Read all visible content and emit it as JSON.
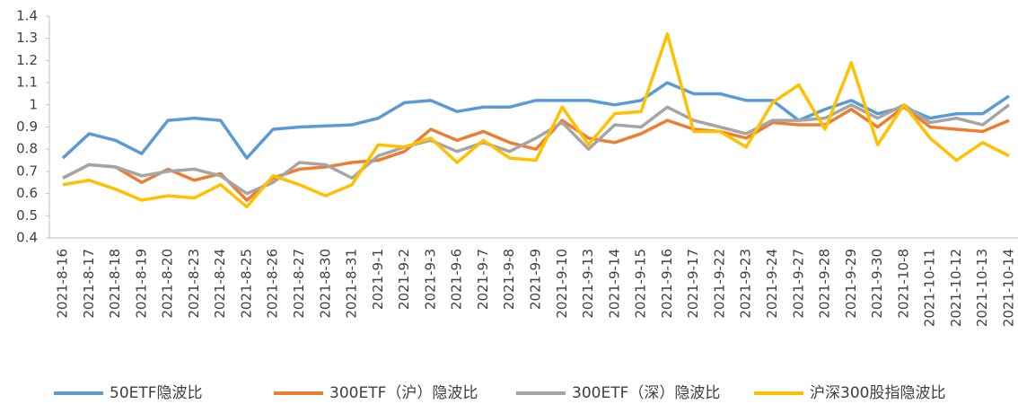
{
  "chart_data": {
    "type": "line",
    "categories": [
      "2021-8-16",
      "2021-8-17",
      "2021-8-18",
      "2021-8-19",
      "2021-8-20",
      "2021-8-23",
      "2021-8-24",
      "2021-8-25",
      "2021-8-26",
      "2021-8-27",
      "2021-8-30",
      "2021-8-31",
      "2021-9-1",
      "2021-9-2",
      "2021-9-3",
      "2021-9-6",
      "2021-9-7",
      "2021-9-8",
      "2021-9-9",
      "2021-9-10",
      "2021-9-13",
      "2021-9-14",
      "2021-9-15",
      "2021-9-16",
      "2021-9-17",
      "2021-9-22",
      "2021-9-23",
      "2021-9-24",
      "2021-9-27",
      "2021-9-28",
      "2021-9-29",
      "2021-9-30",
      "2021-10-8",
      "2021-10-11",
      "2021-10-12",
      "2021-10-13",
      "2021-10-14"
    ],
    "series": [
      {
        "name": "50ETF隐波比",
        "color": "#5b9bd5",
        "values": [
          0.76,
          0.87,
          0.84,
          0.78,
          0.93,
          0.94,
          0.93,
          0.76,
          0.89,
          0.9,
          0.905,
          0.91,
          0.94,
          1.01,
          1.02,
          0.97,
          0.99,
          0.99,
          1.02,
          1.02,
          1.02,
          1.0,
          1.02,
          1.1,
          1.05,
          1.05,
          1.02,
          1.02,
          0.93,
          0.98,
          1.02,
          0.96,
          0.99,
          0.94,
          0.96,
          0.96,
          1.04
        ]
      },
      {
        "name": "300ETF（沪）隐波比",
        "color": "#ed7d31",
        "values": [
          0.67,
          0.73,
          0.72,
          0.65,
          0.71,
          0.66,
          0.69,
          0.57,
          0.67,
          0.71,
          0.72,
          0.74,
          0.75,
          0.79,
          0.89,
          0.84,
          0.88,
          0.83,
          0.8,
          0.93,
          0.85,
          0.83,
          0.87,
          0.93,
          0.89,
          0.88,
          0.85,
          0.92,
          0.91,
          0.91,
          0.98,
          0.9,
          0.99,
          0.9,
          0.89,
          0.88,
          0.93
        ]
      },
      {
        "name": "300ETF（深）隐波比",
        "color": "#a5a5a5",
        "values": [
          0.67,
          0.73,
          0.72,
          0.68,
          0.7,
          0.71,
          0.68,
          0.6,
          0.65,
          0.74,
          0.73,
          0.67,
          0.77,
          0.81,
          0.84,
          0.79,
          0.83,
          0.79,
          0.85,
          0.92,
          0.8,
          0.91,
          0.9,
          0.99,
          0.93,
          0.9,
          0.87,
          0.93,
          0.93,
          0.94,
          1.0,
          0.94,
          1.0,
          0.92,
          0.94,
          0.91,
          1.0
        ]
      },
      {
        "name": "沪深300股指隐波比",
        "color": "#ffc000",
        "values": [
          0.64,
          0.66,
          0.62,
          0.57,
          0.59,
          0.58,
          0.64,
          0.54,
          0.68,
          0.64,
          0.59,
          0.64,
          0.82,
          0.81,
          0.85,
          0.74,
          0.84,
          0.76,
          0.75,
          0.99,
          0.82,
          0.96,
          0.97,
          1.32,
          0.88,
          0.88,
          0.81,
          1.01,
          1.09,
          0.89,
          1.19,
          0.82,
          1.0,
          0.85,
          0.75,
          0.83,
          0.77
        ]
      }
    ],
    "ylim": [
      0.4,
      1.4
    ],
    "yticks": [
      0.4,
      0.5,
      0.6,
      0.7,
      0.8,
      0.9,
      1,
      1.1,
      1.2,
      1.3,
      1.4
    ],
    "grid": false,
    "legend": "bottom"
  }
}
